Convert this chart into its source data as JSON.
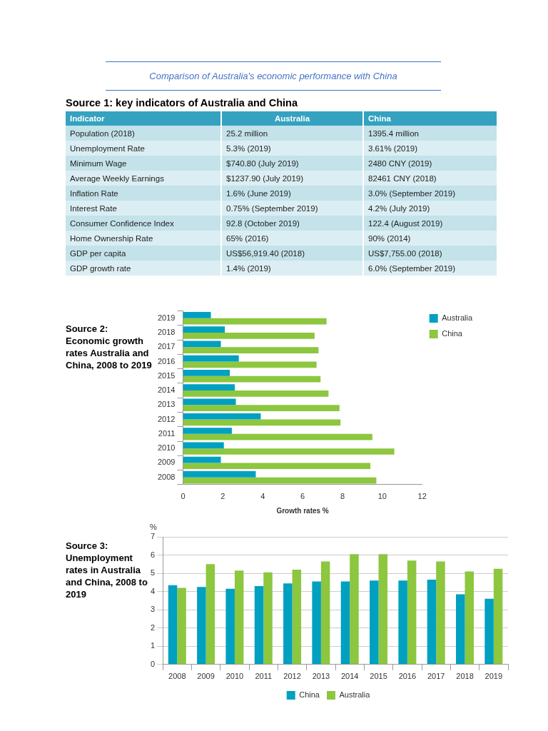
{
  "chart_data": [
    {
      "type": "other",
      "title": "Comparison of Australia's economic performance with China",
      "subtitle": "Source 1: key indicators of Australia and China",
      "categories": [
        "Indicator",
        "Australia",
        "China"
      ],
      "y_categories": [
        "Population (2018)",
        "Unemployment Rate",
        "Minimum Wage",
        "Average Weekly Earnings",
        "Inflation Rate",
        "Interest Rate",
        "Consumer Confidence Index",
        "Home Ownership Rate",
        "GDP per capita",
        "GDP growth rate"
      ],
      "cell_labels": [
        [
          "25.2 million",
          "1395.4 million"
        ],
        [
          "5.3% (2019)",
          "3.61% (2019)"
        ],
        [
          "$740.80 (July 2019)",
          "2480 CNY (2019)"
        ],
        [
          "$1237.90 (July 2019)",
          "82461 CNY (2018)"
        ],
        [
          "1.6% (June 2019)",
          "3.0% (September 2019)"
        ],
        [
          "0.75% (September 2019)",
          "4.2% (July 2019)"
        ],
        [
          "92.8 (October 2019)",
          "122.4 (August 2019)"
        ],
        [
          "65% (2016)",
          "90% (2014)"
        ],
        [
          "US$56,919.40 (2018)",
          "US$7,755.00 (2018)"
        ],
        [
          "1.4% (2019)",
          "6.0% (September 2019)"
        ]
      ]
    },
    {
      "type": "bar",
      "orientation": "horizontal",
      "title": "Source 2: Economic growth rates Australia and China, 2008 to 2019",
      "xlabel": "Growth rates %",
      "categories": [
        "2019",
        "2018",
        "2017",
        "2016",
        "2015",
        "2014",
        "2013",
        "2012",
        "2011",
        "2010",
        "2009",
        "2008"
      ],
      "series": [
        {
          "name": "Australia",
          "color": "#00a0c0",
          "values": [
            1.4,
            2.1,
            1.9,
            2.8,
            2.35,
            2.6,
            2.65,
            3.9,
            2.45,
            2.05,
            1.9,
            3.65
          ]
        },
        {
          "name": "China",
          "color": "#8dc63f",
          "values": [
            7.2,
            6.6,
            6.8,
            6.7,
            6.9,
            7.3,
            7.85,
            7.9,
            9.5,
            10.6,
            9.4,
            9.7
          ]
        }
      ],
      "xlim": [
        0,
        12
      ],
      "xticks": [
        0,
        2,
        4,
        6,
        8,
        10,
        12
      ],
      "grid": false,
      "legend": "top right"
    },
    {
      "type": "bar",
      "title": "Source 3: Unemployment rates in Australia and China, 2008 to 2019",
      "ylabel": "%",
      "categories": [
        "2008",
        "2009",
        "2010",
        "2011",
        "2012",
        "2013",
        "2014",
        "2015",
        "2016",
        "2017",
        "2018",
        "2019"
      ],
      "series": [
        {
          "name": "China",
          "color": "#00a0c0",
          "values": [
            4.35,
            4.25,
            4.15,
            4.3,
            4.45,
            4.55,
            4.55,
            4.6,
            4.6,
            4.65,
            3.85,
            3.6
          ]
        },
        {
          "name": "Australia",
          "color": "#8dc63f",
          "values": [
            4.2,
            5.5,
            5.15,
            5.05,
            5.2,
            5.65,
            6.05,
            6.05,
            5.7,
            5.65,
            5.1,
            5.25
          ]
        }
      ],
      "ylim": [
        0,
        7
      ],
      "yticks": [
        0,
        1,
        2,
        3,
        4,
        5,
        6,
        7
      ],
      "grid": "y",
      "legend": "bottom"
    }
  ]
}
